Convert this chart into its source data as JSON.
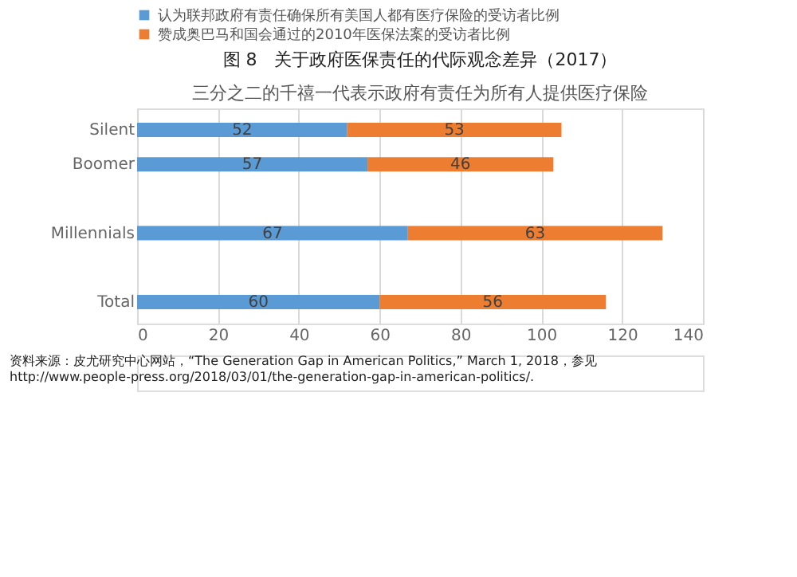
{
  "chart_data": {
    "type": "bar",
    "orientation": "horizontal",
    "stacked": true,
    "title": "图 8　关于政府医保责任的代际观念差异（2017）",
    "subtitle": "三分之二的千禧一代表示政府有责任为所有人提供医疗保险",
    "categories": [
      "Silent",
      "Boomer",
      null,
      "Millennials",
      null,
      "Total"
    ],
    "series": [
      {
        "name": "认为联邦政府有责任确保所有美国人都有医疗保险的受访者比例",
        "color": "#5b9bd5",
        "values": [
          52,
          57,
          null,
          67,
          null,
          60
        ]
      },
      {
        "name": "赞成奥巴马和国会通过的2010年医保法案的受访者比例",
        "color": "#ed7d31",
        "values": [
          53,
          46,
          null,
          63,
          null,
          56
        ]
      }
    ],
    "xlim": [
      0,
      140
    ],
    "xticks": [
      0,
      20,
      40,
      60,
      80,
      100,
      120,
      140
    ],
    "grid": "x",
    "legend": "top",
    "data_labels": true,
    "annotations": [
      "资料来源：皮尤研究中心网站，“The Generation Gap in American Politics,” March 1, 2018，参见 http://www.people-press.org/2018/03/01/the-generation-gap-in-american-politics/."
    ]
  }
}
